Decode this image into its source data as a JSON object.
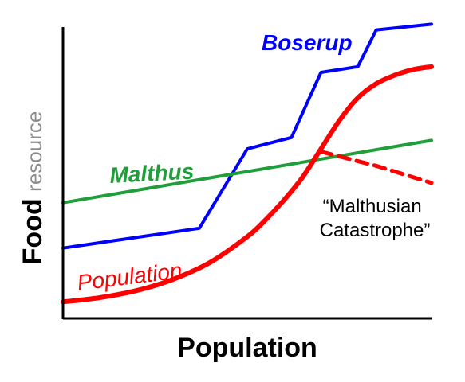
{
  "chart_data": {
    "type": "line",
    "title": "",
    "xlabel": "Population",
    "ylabel_bold": "Food",
    "ylabel_light": "resource",
    "xlim": [
      0,
      100
    ],
    "ylim": [
      0,
      100
    ],
    "grid": false,
    "legend": "none",
    "series": [
      {
        "name": "Boserup",
        "color": "#0000ff",
        "label_weight": "bold",
        "x": [
          0,
          37,
          50,
          62,
          70,
          80,
          85,
          100
        ],
        "y": [
          22,
          29,
          57,
          61,
          84,
          86,
          99,
          101
        ]
      },
      {
        "name": "Malthus",
        "color": "#1f9e3a",
        "label_weight": "bold",
        "x": [
          0,
          100
        ],
        "y": [
          38,
          60
        ]
      },
      {
        "name": "Population",
        "color": "#ff0000",
        "label_weight": "normal",
        "x": [
          0,
          10,
          20,
          30,
          40,
          50,
          55,
          60,
          65,
          70,
          75,
          80,
          85,
          90,
          95,
          100
        ],
        "y": [
          3,
          4.5,
          7,
          11,
          17,
          26,
          32,
          39,
          47,
          57,
          67,
          75,
          80,
          83,
          85,
          86
        ]
      }
    ],
    "catastrophe": {
      "color": "#ff0000",
      "style": "dashed",
      "x": [
        70,
        85,
        100
      ],
      "y": [
        56,
        51,
        45
      ]
    },
    "annotation": {
      "lines": [
        "“Malthusian",
        "Catastrophe”"
      ]
    }
  }
}
